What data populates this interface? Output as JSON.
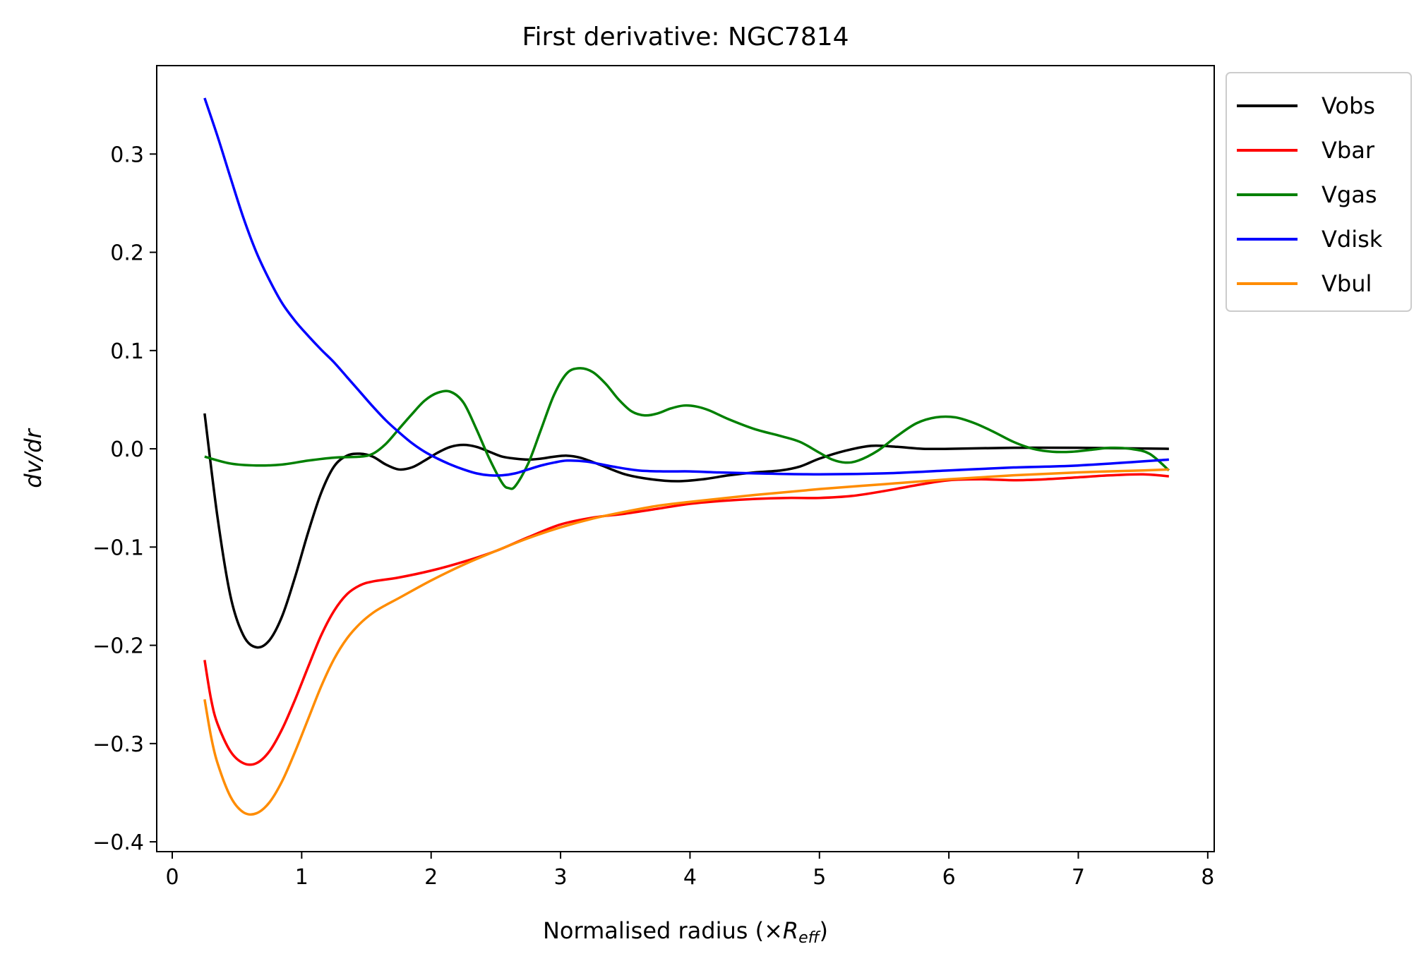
{
  "chart_data": {
    "type": "line",
    "title": "First derivative: NGC7814",
    "xlabel_prefix": "Normalised radius (×",
    "xlabel_symbol": "R",
    "xlabel_sub": "eff",
    "xlabel_suffix": ")",
    "ylabel": "dv/dr",
    "xlim": [
      -0.12,
      8.05
    ],
    "ylim": [
      -0.41,
      0.39
    ],
    "xticks": [
      0,
      1,
      2,
      3,
      4,
      5,
      6,
      7,
      8
    ],
    "yticks": [
      -0.4,
      -0.3,
      -0.2,
      -0.1,
      0.0,
      0.1,
      0.2,
      0.3
    ],
    "ytick_labels": [
      "−0.4",
      "−0.3",
      "−0.2",
      "−0.1",
      "0.0",
      "0.1",
      "0.2",
      "0.3"
    ],
    "legend_position": "outside upper right",
    "grid": false,
    "series": [
      {
        "name": "Vobs",
        "color": "#000000",
        "points": [
          [
            0.25,
            0.036
          ],
          [
            0.35,
            -0.07
          ],
          [
            0.45,
            -0.15
          ],
          [
            0.55,
            -0.19
          ],
          [
            0.65,
            -0.202
          ],
          [
            0.75,
            -0.195
          ],
          [
            0.85,
            -0.17
          ],
          [
            0.95,
            -0.13
          ],
          [
            1.05,
            -0.085
          ],
          [
            1.15,
            -0.045
          ],
          [
            1.25,
            -0.018
          ],
          [
            1.35,
            -0.007
          ],
          [
            1.45,
            -0.005
          ],
          [
            1.55,
            -0.008
          ],
          [
            1.65,
            -0.016
          ],
          [
            1.75,
            -0.021
          ],
          [
            1.85,
            -0.019
          ],
          [
            1.95,
            -0.012
          ],
          [
            2.05,
            -0.004
          ],
          [
            2.15,
            0.002
          ],
          [
            2.25,
            0.004
          ],
          [
            2.35,
            0.002
          ],
          [
            2.45,
            -0.003
          ],
          [
            2.55,
            -0.008
          ],
          [
            2.65,
            -0.01
          ],
          [
            2.75,
            -0.011
          ],
          [
            2.85,
            -0.01
          ],
          [
            2.95,
            -0.008
          ],
          [
            3.05,
            -0.007
          ],
          [
            3.15,
            -0.009
          ],
          [
            3.3,
            -0.016
          ],
          [
            3.5,
            -0.026
          ],
          [
            3.7,
            -0.031
          ],
          [
            3.9,
            -0.033
          ],
          [
            4.1,
            -0.031
          ],
          [
            4.3,
            -0.027
          ],
          [
            4.5,
            -0.024
          ],
          [
            4.7,
            -0.022
          ],
          [
            4.85,
            -0.018
          ],
          [
            5.0,
            -0.01
          ],
          [
            5.2,
            -0.002
          ],
          [
            5.4,
            0.003
          ],
          [
            5.6,
            0.002
          ],
          [
            5.8,
            0.0
          ],
          [
            6.0,
            0.0
          ],
          [
            6.5,
            0.001
          ],
          [
            7.0,
            0.001
          ],
          [
            7.7,
            0.0
          ]
        ]
      },
      {
        "name": "Vbar",
        "color": "#ff0000",
        "points": [
          [
            0.25,
            -0.215
          ],
          [
            0.3,
            -0.255
          ],
          [
            0.35,
            -0.28
          ],
          [
            0.45,
            -0.308
          ],
          [
            0.55,
            -0.32
          ],
          [
            0.65,
            -0.32
          ],
          [
            0.75,
            -0.308
          ],
          [
            0.85,
            -0.285
          ],
          [
            0.95,
            -0.255
          ],
          [
            1.05,
            -0.222
          ],
          [
            1.15,
            -0.19
          ],
          [
            1.25,
            -0.165
          ],
          [
            1.35,
            -0.148
          ],
          [
            1.45,
            -0.139
          ],
          [
            1.55,
            -0.135
          ],
          [
            1.75,
            -0.131
          ],
          [
            2.0,
            -0.124
          ],
          [
            2.25,
            -0.115
          ],
          [
            2.5,
            -0.104
          ],
          [
            2.75,
            -0.09
          ],
          [
            3.0,
            -0.077
          ],
          [
            3.25,
            -0.07
          ],
          [
            3.5,
            -0.066
          ],
          [
            3.75,
            -0.061
          ],
          [
            4.0,
            -0.056
          ],
          [
            4.25,
            -0.053
          ],
          [
            4.5,
            -0.051
          ],
          [
            4.75,
            -0.05
          ],
          [
            5.0,
            -0.05
          ],
          [
            5.25,
            -0.048
          ],
          [
            5.5,
            -0.043
          ],
          [
            5.75,
            -0.037
          ],
          [
            6.0,
            -0.032
          ],
          [
            6.25,
            -0.031
          ],
          [
            6.5,
            -0.032
          ],
          [
            6.75,
            -0.031
          ],
          [
            7.0,
            -0.029
          ],
          [
            7.25,
            -0.027
          ],
          [
            7.5,
            -0.026
          ],
          [
            7.7,
            -0.028
          ]
        ]
      },
      {
        "name": "Vgas",
        "color": "#008000",
        "points": [
          [
            0.25,
            -0.008
          ],
          [
            0.45,
            -0.015
          ],
          [
            0.65,
            -0.017
          ],
          [
            0.85,
            -0.016
          ],
          [
            1.05,
            -0.012
          ],
          [
            1.25,
            -0.009
          ],
          [
            1.45,
            -0.008
          ],
          [
            1.55,
            -0.005
          ],
          [
            1.65,
            0.005
          ],
          [
            1.75,
            0.02
          ],
          [
            1.85,
            0.035
          ],
          [
            1.95,
            0.049
          ],
          [
            2.05,
            0.057
          ],
          [
            2.15,
            0.058
          ],
          [
            2.25,
            0.047
          ],
          [
            2.35,
            0.02
          ],
          [
            2.45,
            -0.01
          ],
          [
            2.55,
            -0.035
          ],
          [
            2.6,
            -0.04
          ],
          [
            2.65,
            -0.038
          ],
          [
            2.75,
            -0.015
          ],
          [
            2.85,
            0.02
          ],
          [
            2.95,
            0.055
          ],
          [
            3.05,
            0.077
          ],
          [
            3.15,
            0.082
          ],
          [
            3.25,
            0.078
          ],
          [
            3.35,
            0.066
          ],
          [
            3.45,
            0.05
          ],
          [
            3.55,
            0.038
          ],
          [
            3.65,
            0.034
          ],
          [
            3.75,
            0.036
          ],
          [
            3.85,
            0.041
          ],
          [
            3.95,
            0.044
          ],
          [
            4.05,
            0.043
          ],
          [
            4.15,
            0.039
          ],
          [
            4.3,
            0.03
          ],
          [
            4.5,
            0.02
          ],
          [
            4.7,
            0.013
          ],
          [
            4.85,
            0.007
          ],
          [
            5.0,
            -0.004
          ],
          [
            5.1,
            -0.011
          ],
          [
            5.2,
            -0.014
          ],
          [
            5.3,
            -0.012
          ],
          [
            5.45,
            -0.002
          ],
          [
            5.6,
            0.013
          ],
          [
            5.75,
            0.026
          ],
          [
            5.9,
            0.032
          ],
          [
            6.05,
            0.032
          ],
          [
            6.2,
            0.026
          ],
          [
            6.35,
            0.017
          ],
          [
            6.5,
            0.007
          ],
          [
            6.65,
            0.0
          ],
          [
            6.8,
            -0.003
          ],
          [
            6.95,
            -0.003
          ],
          [
            7.1,
            -0.001
          ],
          [
            7.25,
            0.001
          ],
          [
            7.4,
            0.0
          ],
          [
            7.55,
            -0.005
          ],
          [
            7.7,
            -0.022
          ]
        ]
      },
      {
        "name": "Vdisk",
        "color": "#0000ff",
        "points": [
          [
            0.25,
            0.357
          ],
          [
            0.35,
            0.318
          ],
          [
            0.45,
            0.276
          ],
          [
            0.55,
            0.235
          ],
          [
            0.65,
            0.2
          ],
          [
            0.75,
            0.172
          ],
          [
            0.85,
            0.148
          ],
          [
            0.95,
            0.13
          ],
          [
            1.05,
            0.115
          ],
          [
            1.15,
            0.101
          ],
          [
            1.25,
            0.088
          ],
          [
            1.35,
            0.073
          ],
          [
            1.45,
            0.058
          ],
          [
            1.55,
            0.043
          ],
          [
            1.65,
            0.029
          ],
          [
            1.75,
            0.017
          ],
          [
            1.85,
            0.006
          ],
          [
            1.95,
            -0.003
          ],
          [
            2.05,
            -0.01
          ],
          [
            2.15,
            -0.016
          ],
          [
            2.25,
            -0.021
          ],
          [
            2.35,
            -0.025
          ],
          [
            2.45,
            -0.027
          ],
          [
            2.55,
            -0.027
          ],
          [
            2.65,
            -0.025
          ],
          [
            2.75,
            -0.021
          ],
          [
            2.85,
            -0.017
          ],
          [
            2.95,
            -0.014
          ],
          [
            3.05,
            -0.012
          ],
          [
            3.2,
            -0.013
          ],
          [
            3.4,
            -0.018
          ],
          [
            3.6,
            -0.022
          ],
          [
            3.8,
            -0.023
          ],
          [
            4.0,
            -0.023
          ],
          [
            4.2,
            -0.024
          ],
          [
            4.5,
            -0.025
          ],
          [
            5.0,
            -0.026
          ],
          [
            5.5,
            -0.025
          ],
          [
            6.0,
            -0.022
          ],
          [
            6.5,
            -0.019
          ],
          [
            7.0,
            -0.017
          ],
          [
            7.7,
            -0.011
          ]
        ]
      },
      {
        "name": "Vbul",
        "color": "#ff8c00",
        "points": [
          [
            0.25,
            -0.255
          ],
          [
            0.3,
            -0.293
          ],
          [
            0.35,
            -0.32
          ],
          [
            0.45,
            -0.354
          ],
          [
            0.55,
            -0.37
          ],
          [
            0.65,
            -0.371
          ],
          [
            0.75,
            -0.36
          ],
          [
            0.85,
            -0.338
          ],
          [
            0.95,
            -0.308
          ],
          [
            1.05,
            -0.275
          ],
          [
            1.15,
            -0.242
          ],
          [
            1.25,
            -0.214
          ],
          [
            1.35,
            -0.193
          ],
          [
            1.45,
            -0.178
          ],
          [
            1.55,
            -0.167
          ],
          [
            1.65,
            -0.159
          ],
          [
            1.75,
            -0.152
          ],
          [
            2.0,
            -0.134
          ],
          [
            2.25,
            -0.118
          ],
          [
            2.5,
            -0.104
          ],
          [
            2.75,
            -0.091
          ],
          [
            3.0,
            -0.08
          ],
          [
            3.25,
            -0.071
          ],
          [
            3.5,
            -0.064
          ],
          [
            3.75,
            -0.058
          ],
          [
            4.0,
            -0.054
          ],
          [
            4.5,
            -0.047
          ],
          [
            5.0,
            -0.041
          ],
          [
            5.5,
            -0.036
          ],
          [
            6.0,
            -0.031
          ],
          [
            6.5,
            -0.027
          ],
          [
            7.0,
            -0.024
          ],
          [
            7.5,
            -0.022
          ],
          [
            7.7,
            -0.021
          ]
        ]
      }
    ]
  }
}
